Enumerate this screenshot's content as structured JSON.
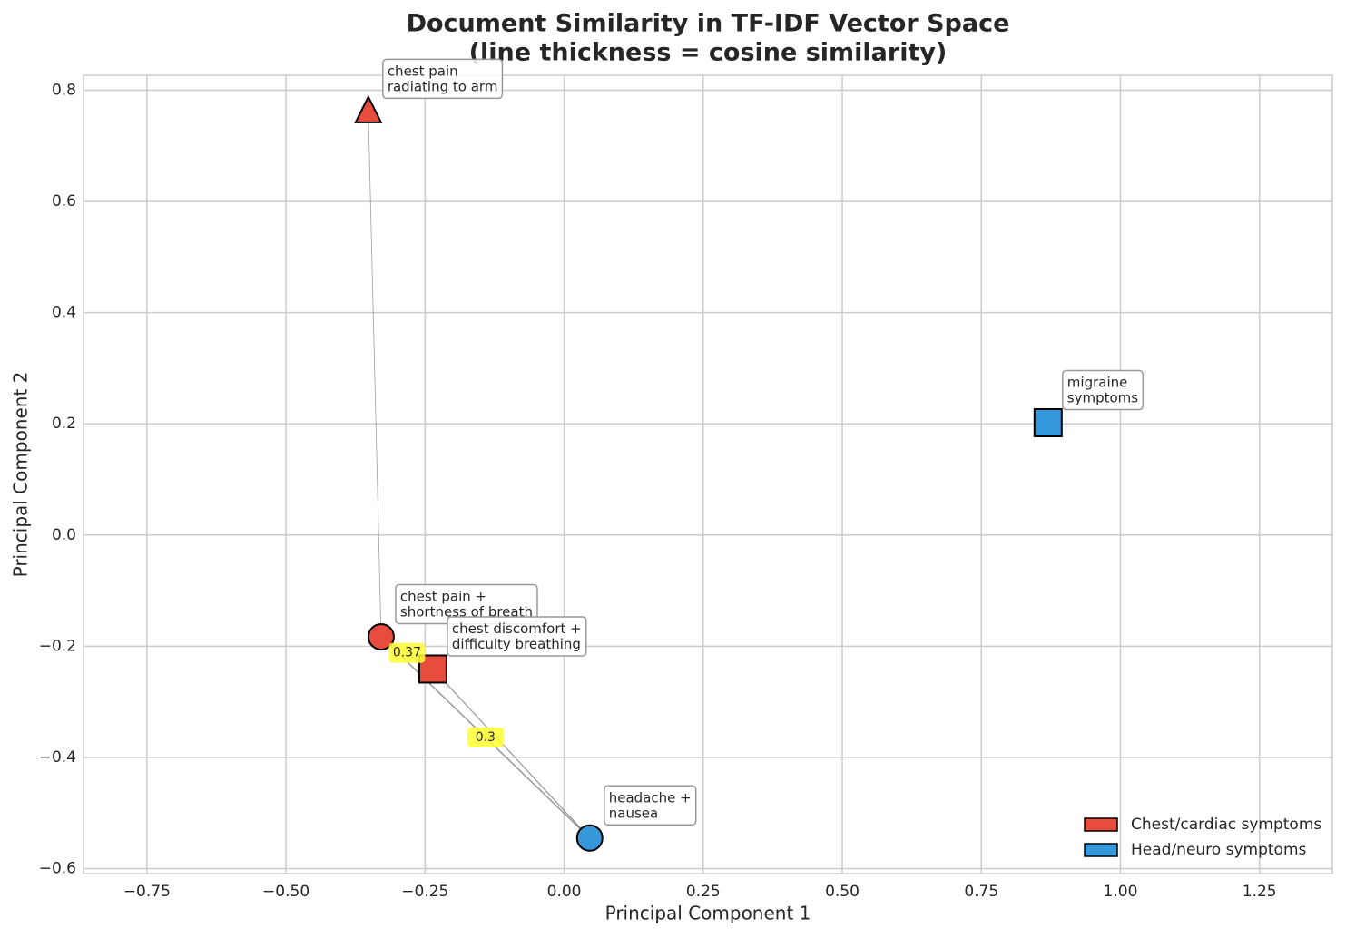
{
  "chart_data": {
    "type": "scatter",
    "title": [
      "Document Similarity in TF-IDF Vector Space",
      "(line thickness = cosine similarity)"
    ],
    "xlabel": "Principal Component 1",
    "ylabel": "Principal Component 2",
    "xlim": [
      -0.864,
      1.381
    ],
    "ylim": [
      -0.609,
      0.827
    ],
    "xticks": [
      {
        "value": -0.75,
        "label": "−0.75"
      },
      {
        "value": -0.5,
        "label": "−0.50"
      },
      {
        "value": -0.25,
        "label": "−0.25"
      },
      {
        "value": 0,
        "label": "0.00"
      },
      {
        "value": 0.25,
        "label": "0.25"
      },
      {
        "value": 0.5,
        "label": "0.50"
      },
      {
        "value": 0.75,
        "label": "0.75"
      },
      {
        "value": 1,
        "label": "1.00"
      },
      {
        "value": 1.25,
        "label": "1.25"
      }
    ],
    "yticks": [
      {
        "value": -0.6,
        "label": "−0.6"
      },
      {
        "value": -0.4,
        "label": "−0.4"
      },
      {
        "value": -0.2,
        "label": "−0.2"
      },
      {
        "value": 0,
        "label": "0.0"
      },
      {
        "value": 0.2,
        "label": "0.2"
      },
      {
        "value": 0.4,
        "label": "0.4"
      },
      {
        "value": 0.6,
        "label": "0.6"
      },
      {
        "value": 0.8,
        "label": "0.8"
      }
    ],
    "grid": true,
    "legend_position": "lower right",
    "series": [
      {
        "name": "Chest/cardiac symptoms",
        "color": "#e74c3c",
        "x": [
          -0.352,
          -0.329,
          -0.236
        ],
        "y": [
          0.762,
          -0.183,
          -0.241
        ],
        "markers": [
          "triangle",
          "circle",
          "square"
        ],
        "labels": [
          [
            "chest pain",
            "radiating to arm"
          ],
          [
            "chest pain +",
            "shortness of breath"
          ],
          [
            "chest discomfort +",
            "difficulty breathing"
          ]
        ]
      },
      {
        "name": "Head/neuro symptoms",
        "color": "#3498db",
        "x": [
          0.87,
          0.046
        ],
        "y": [
          0.202,
          -0.545
        ],
        "markers": [
          "square",
          "circle"
        ],
        "labels": [
          [
            "migraine",
            "symptoms"
          ],
          [
            "headache +",
            "nausea"
          ]
        ]
      }
    ],
    "edges": [
      {
        "source": [
          0,
          0
        ],
        "target": [
          0,
          1
        ],
        "similarity": 0.15,
        "labeled": false
      },
      {
        "source": [
          0,
          1
        ],
        "target": [
          0,
          2
        ],
        "similarity": 0.37,
        "labeled": true
      },
      {
        "source": [
          0,
          1
        ],
        "target": [
          1,
          1
        ],
        "similarity": 0.3,
        "labeled": true
      },
      {
        "source": [
          0,
          2
        ],
        "target": [
          1,
          1
        ],
        "similarity": 0.25,
        "labeled": false
      }
    ]
  }
}
